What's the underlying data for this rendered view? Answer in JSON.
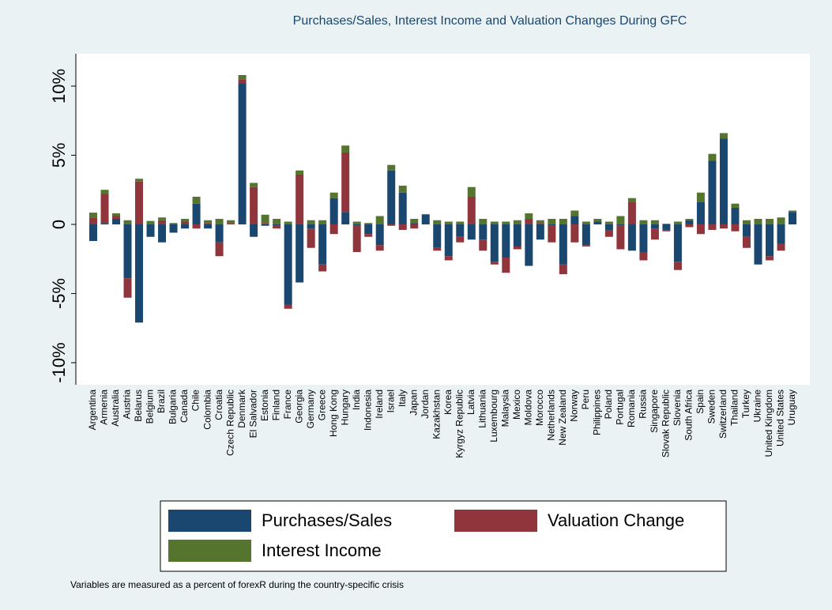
{
  "chart_data": {
    "type": "bar",
    "stacked": true,
    "title": "Purchases/Sales, Interest Income and Valuation Changes During GFC",
    "note": "Variables are measured as a percent of forexR during the country-specific crisis",
    "categories": [
      "Argentina",
      "Armenia",
      "Australia",
      "Austria",
      "Belarus",
      "Belgium",
      "Brazil",
      "Bulgaria",
      "Canada",
      "Chile",
      "Colombia",
      "Croatia",
      "Czech Republic",
      "Denmark",
      "El Salvador",
      "Estonia",
      "Finland",
      "France",
      "Georgia",
      "Germany",
      "Greece",
      "Hong Kong",
      "Hungary",
      "India",
      "Indonesia",
      "Ireland",
      "Israel",
      "Italy",
      "Japan",
      "Jordan",
      "Kazakhstan",
      "Korea",
      "Kyrgyz Republic",
      "Latvia",
      "Lithuania",
      "Luxembourg",
      "Malaysia",
      "Mexico",
      "Moldova",
      "Morocco",
      "Netherlands",
      "New Zealand",
      "Norway",
      "Peru",
      "Philippines",
      "Poland",
      "Portugal",
      "Romania",
      "Russia",
      "Singapore",
      "Slovak Republic",
      "Slovenia",
      "South Africa",
      "Spain",
      "Sweden",
      "Switzerland",
      "Thailand",
      "Turkey",
      "Ukraine",
      "United Kingdom",
      "United States",
      "Uruguay"
    ],
    "series": [
      {
        "name": "Purchases/Sales",
        "color": "#1a476f",
        "values": [
          -1.2,
          0.1,
          0.4,
          -3.9,
          -7.1,
          -0.9,
          -1.3,
          -0.6,
          -0.3,
          1.5,
          -0.3,
          -1.3,
          0,
          10.2,
          -0.9,
          -0.1,
          -0.1,
          -5.8,
          -4.2,
          -0.3,
          -2.9,
          1.9,
          0.9,
          -0.1,
          -0.7,
          -1.5,
          3.9,
          2.3,
          0.1,
          0.7,
          -1.7,
          -2.3,
          -0.9,
          -1.1,
          -1.1,
          -2.7,
          -2.4,
          -1.6,
          -3.0,
          -1.1,
          -0.1,
          -2.9,
          0.6,
          -1.5,
          0.2,
          -0.4,
          -0.1,
          -1.9,
          -2.0,
          -0.3,
          -0.4,
          -2.7,
          0.3,
          1.6,
          4.6,
          6.2,
          1.2,
          -0.9,
          -2.9,
          -2.3,
          -1.4,
          0.9
        ]
      },
      {
        "name": "Valuation Change",
        "color": "#90353b",
        "values": [
          0.5,
          2.1,
          0.2,
          -1.4,
          3.1,
          0,
          0.3,
          0,
          0.2,
          -0.3,
          0.1,
          -1.0,
          0.1,
          0.3,
          2.7,
          0.1,
          -0.2,
          -0.3,
          3.6,
          -1.4,
          -0.5,
          -0.7,
          4.3,
          -1.9,
          -0.2,
          -0.4,
          -0.1,
          -0.4,
          -0.3,
          0,
          -0.2,
          -0.3,
          -0.4,
          2.0,
          -0.8,
          -0.2,
          -1.1,
          -0.2,
          0.4,
          0.1,
          -1.2,
          -0.7,
          -1.3,
          -0.1,
          0,
          -0.5,
          -1.7,
          1.6,
          -0.6,
          -0.8,
          -0.1,
          -0.6,
          -0.2,
          -0.7,
          -0.4,
          -0.3,
          -0.5,
          -0.8,
          0,
          -0.3,
          -0.5,
          0
        ]
      },
      {
        "name": "Interest Income",
        "color": "#55752f",
        "values": [
          0.35,
          0.3,
          0.2,
          0.3,
          0.2,
          0.25,
          0.2,
          0.1,
          0.2,
          0.5,
          0.2,
          0.4,
          0.2,
          0.3,
          0.3,
          0.6,
          0.4,
          0.2,
          0.3,
          0.3,
          0.3,
          0.4,
          0.5,
          0.2,
          0.1,
          0.6,
          0.4,
          0.5,
          0.3,
          0.05,
          0.3,
          0.2,
          0.2,
          0.7,
          0.4,
          0.2,
          0.2,
          0.3,
          0.4,
          0.2,
          0.4,
          0.4,
          0.4,
          0.2,
          0.2,
          0.2,
          0.6,
          0.3,
          0.3,
          0.3,
          0.05,
          0.2,
          0.1,
          0.7,
          0.5,
          0.4,
          0.3,
          0.3,
          0.4,
          0.4,
          0.5,
          0.1
        ]
      }
    ],
    "ylim": [
      -11.6,
      12.34
    ],
    "yticks": [
      {
        "value": -10,
        "label": "-10%"
      },
      {
        "value": -5,
        "label": "-5%"
      },
      0,
      {
        "value": 5,
        "label": "5%"
      },
      {
        "value": 10,
        "label": "10%"
      }
    ],
    "legend": "bottom"
  }
}
